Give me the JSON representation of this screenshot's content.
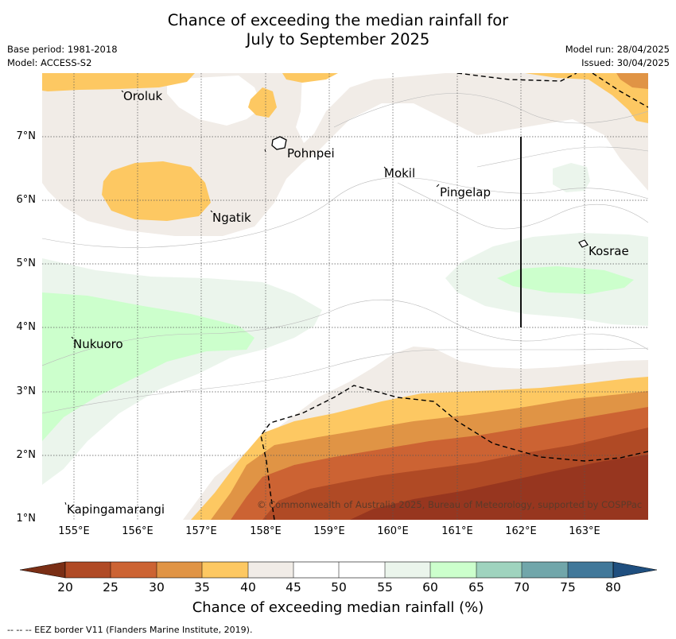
{
  "title_lines": [
    "Chance of exceeding the median rainfall for",
    "July to September 2025"
  ],
  "meta_left": [
    "Base period: 1981-2018",
    "Model: ACCESS-S2"
  ],
  "meta_right": [
    "Model run: 28/04/2025",
    "Issued: 30/04/2025"
  ],
  "map": {
    "lat_ticks": [
      "7°N",
      "6°N",
      "5°N",
      "4°N",
      "3°N",
      "2°N",
      "1°N"
    ],
    "lon_ticks": [
      "155°E",
      "156°E",
      "157°E",
      "158°E",
      "159°E",
      "160°E",
      "161°E",
      "162°E",
      "163°E"
    ],
    "places": [
      "Oroluk",
      "Pohnpei",
      "Mokil",
      "Pingelap",
      "Ngatik",
      "Kosrae",
      "Nukuoro",
      "Kapingamarangi"
    ],
    "copyright": "© Commonwealth of Australia 2025, Bureau of Meteorology, supported by COSPPac",
    "gridlines": true
  },
  "colorbar": {
    "labels": [
      "20",
      "25",
      "30",
      "35",
      "40",
      "45",
      "50",
      "55",
      "60",
      "65",
      "70",
      "75",
      "80"
    ],
    "colors": [
      "#7a2e15",
      "#b04a25",
      "#cc6333",
      "#e09445",
      "#fdc862",
      "#f1ece7",
      "#ffffff",
      "#ffffff",
      "#ebf5ec",
      "#ccffcc",
      "#9fd3be",
      "#71a6aa",
      "#41789a",
      "#1f4f7f"
    ],
    "title": "Chance of exceeding median rainfall (%)"
  },
  "footnote": "--  --  -- EEZ border V11 (Flanders Marine Institute, 2019)."
}
